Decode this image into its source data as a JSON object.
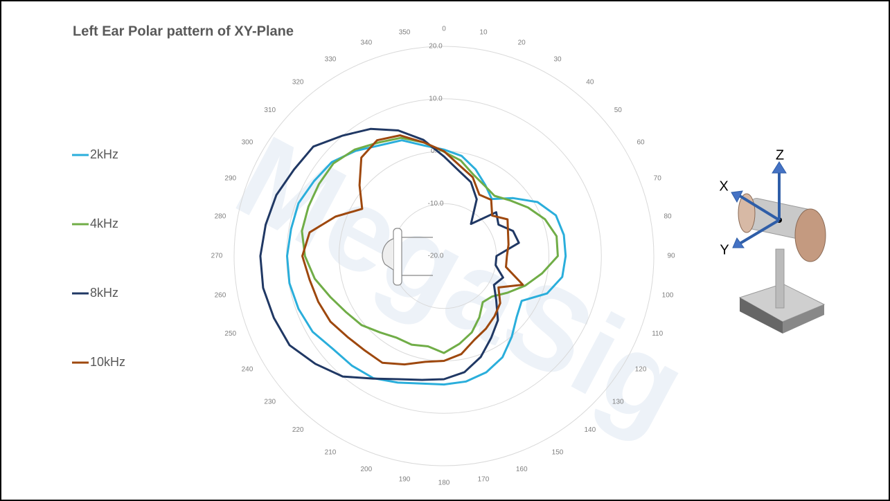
{
  "chart_data": {
    "type": "polar",
    "title": "Left Ear Polar pattern of XY-Plane",
    "watermark": "MegaSig",
    "annotations": [
      "X",
      "Y",
      "Z"
    ],
    "categories": [
      "0",
      "10",
      "20",
      "30",
      "40",
      "50",
      "60",
      "70",
      "80",
      "90",
      "100",
      "110",
      "120",
      "130",
      "140",
      "150",
      "160",
      "170",
      "180",
      "190",
      "200",
      "210",
      "220",
      "230",
      "240",
      "250",
      "260",
      "270",
      "280",
      "290",
      "300",
      "310",
      "320",
      "330",
      "340",
      "350"
    ],
    "ylim": [
      -20,
      20
    ],
    "yticks": [
      {
        "value": -20,
        "label": "-20.0"
      },
      {
        "value": -10,
        "label": "-10.0"
      },
      {
        "value": 0,
        "label": "0.0"
      },
      {
        "value": 10,
        "label": "10.0"
      },
      {
        "value": 20,
        "label": "20.0"
      }
    ],
    "grid": true,
    "legend": "left",
    "series": [
      {
        "name": "2kHz",
        "color": "#2aaedb",
        "values": [
          0.3,
          -0.6,
          -2.4,
          -4.3,
          -5.8,
          -2.8,
          0.6,
          2.7,
          3.2,
          3.2,
          2.9,
          0.9,
          -2.9,
          -1.9,
          0.1,
          2.3,
          3.6,
          4.3,
          4.5,
          4.7,
          5.7,
          6.9,
          7.3,
          7.6,
          8.9,
          9.5,
          9.9,
          9.9,
          9.6,
          9.5,
          8.6,
          7.9,
          6.2,
          4.4,
          3.5,
          1.4
        ]
      },
      {
        "name": "4kHz",
        "color": "#70ad47",
        "values": [
          -0.1,
          -1.5,
          -3.5,
          -4.5,
          -5,
          -3.5,
          -1.5,
          0.5,
          1.8,
          1.7,
          -1,
          -3.5,
          -6,
          -8,
          -8.5,
          -6.5,
          -4.5,
          -3,
          -1.5,
          -2.5,
          -2,
          -2,
          -1,
          0.5,
          1.5,
          3,
          5,
          6.5,
          7.5,
          7.5,
          7.5,
          7.5,
          6.5,
          5,
          4,
          2
        ]
      },
      {
        "name": "8kHz",
        "color": "#203864",
        "values": [
          -1,
          -3.5,
          -5,
          -7.5,
          -12,
          -7,
          -8,
          -6,
          -5.5,
          -10,
          -10,
          -8,
          -9,
          -7,
          -4,
          -2,
          0.5,
          2.5,
          3.5,
          4,
          5,
          7,
          10,
          12,
          14,
          14.5,
          15,
          15,
          14.5,
          14,
          13,
          12.5,
          10,
          8,
          5.5,
          2.5
        ]
      },
      {
        "name": "10kHz",
        "color": "#9e480e",
        "values": [
          0,
          -2.5,
          -4,
          -6.5,
          -6,
          -8,
          -6,
          -7,
          -7.5,
          -8,
          -8,
          -4,
          -8,
          -6,
          -5,
          -4,
          -3,
          -1,
          0,
          0.5,
          2,
          3.5,
          3.5,
          4,
          5,
          5.5,
          6,
          7,
          6,
          2,
          -2,
          1,
          4.5,
          5.5,
          4.5,
          2
        ]
      }
    ]
  }
}
